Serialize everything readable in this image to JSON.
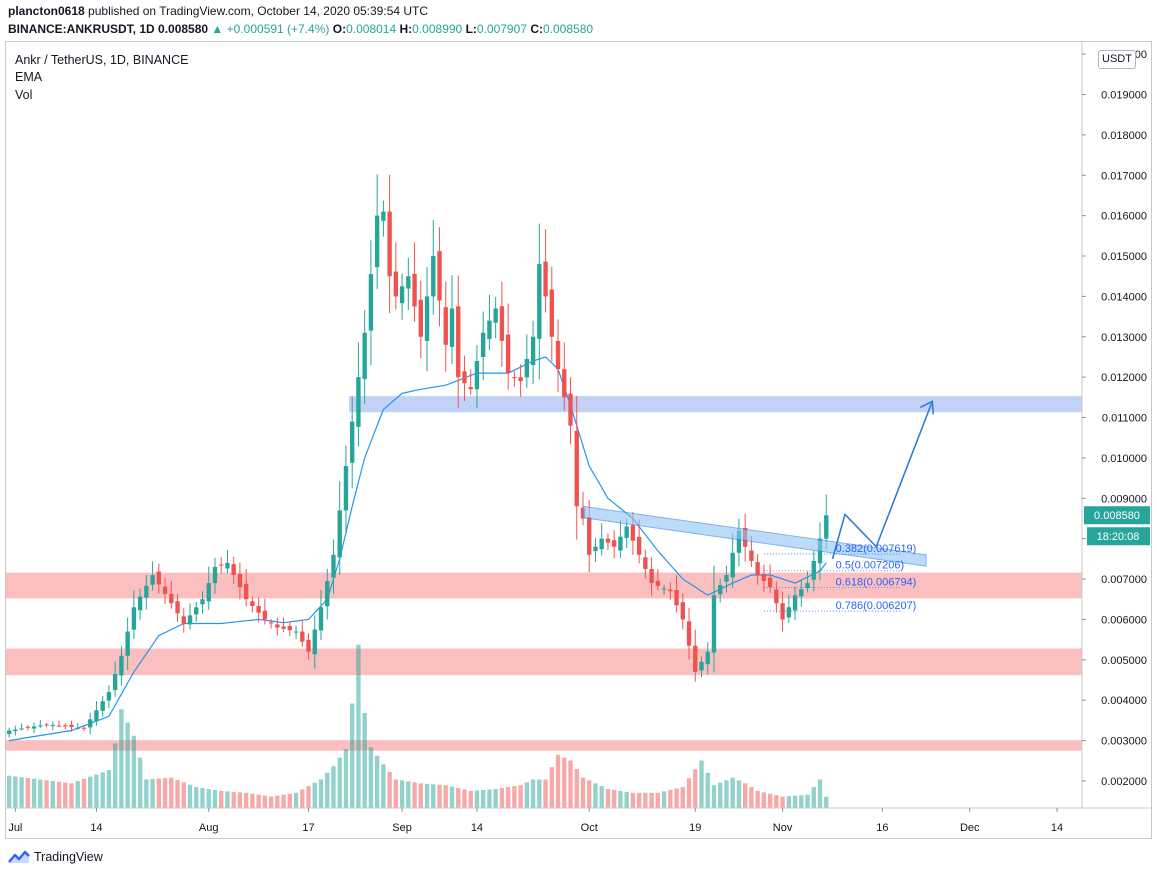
{
  "header": {
    "user": "plancton0618",
    "published": "published on TradingView.com, October 14, 2020 05:39:54 UTC",
    "symbol": "BINANCE:ANKRUSDT, 1D",
    "last": "0.008580",
    "change": "+0.000591 (+7.4%)",
    "o_label": "O:",
    "o_value": "0.008014",
    "h_label": "H:",
    "h_value": "0.008990",
    "l_label": "L:",
    "l_value": "0.007907",
    "c_label": "C:",
    "c_value": "0.008580"
  },
  "legend": {
    "title": "Ankr / TetherUS, 1D, BINANCE",
    "ema": "EMA",
    "vol": "Vol"
  },
  "currency_badge": "USDT",
  "price_badge": {
    "price": "0.008580",
    "countdown": "18:20:08"
  },
  "footer": {
    "brand": "TradingView"
  },
  "colors": {
    "up": "#26a69a",
    "down": "#ef5350",
    "ema": "#2196f3",
    "resistance_zone": "#bbcdf5",
    "support_zone": "#fbb8b8",
    "drawing": "#2f7fd6"
  },
  "chart_data": {
    "type": "candlestick",
    "ylim": [
      0.00133,
      0.0203
    ],
    "yticks": [
      "0.020000",
      "0.019000",
      "0.018000",
      "0.017000",
      "0.016000",
      "0.015000",
      "0.014000",
      "0.013000",
      "0.012000",
      "0.011000",
      "0.010000",
      "0.009000",
      "0.008000",
      "0.007000",
      "0.006000",
      "0.005000",
      "0.004000",
      "0.003000",
      "0.002000"
    ],
    "xticks": [
      "Jul",
      "14",
      "Aug",
      "17",
      "Sep",
      "14",
      "Oct",
      "19",
      "Nov",
      "16",
      "Dec",
      "14"
    ],
    "xtick_days": [
      1,
      14,
      32,
      48,
      63,
      75,
      93,
      110,
      124,
      140,
      154,
      168
    ],
    "x_range_days": [
      -0.5,
      172.0
    ],
    "start_date": "2020-06-29",
    "close_path": [
      [
        0,
        0.00325
      ],
      [
        6,
        0.0034
      ],
      [
        12,
        0.0033
      ],
      [
        16,
        0.0042
      ],
      [
        18,
        0.0051
      ],
      [
        20,
        0.0063
      ],
      [
        23,
        0.0071
      ],
      [
        26,
        0.0064
      ],
      [
        28,
        0.0059
      ],
      [
        31,
        0.0065
      ],
      [
        33,
        0.0073
      ],
      [
        35,
        0.0074
      ],
      [
        38,
        0.0065
      ],
      [
        41,
        0.006
      ],
      [
        43,
        0.0058
      ],
      [
        46,
        0.0057
      ],
      [
        48,
        0.0052
      ],
      [
        50,
        0.0063
      ],
      [
        52,
        0.0076
      ],
      [
        55,
        0.0109
      ],
      [
        57,
        0.0131
      ],
      [
        59,
        0.016
      ],
      [
        60,
        0.0161
      ],
      [
        61,
        0.0145
      ],
      [
        62,
        0.014
      ],
      [
        64,
        0.0145
      ],
      [
        66,
        0.013
      ],
      [
        68,
        0.015
      ],
      [
        70,
        0.0128
      ],
      [
        71,
        0.0137
      ],
      [
        72,
        0.012
      ],
      [
        74,
        0.0117
      ],
      [
        76,
        0.0131
      ],
      [
        78,
        0.0137
      ],
      [
        80,
        0.0121
      ],
      [
        82,
        0.0119
      ],
      [
        84,
        0.013
      ],
      [
        85,
        0.0148
      ],
      [
        86,
        0.014
      ],
      [
        87,
        0.013
      ],
      [
        88,
        0.0122
      ],
      [
        90,
        0.0108
      ],
      [
        91,
        0.0088
      ],
      [
        92,
        0.0085
      ],
      [
        93,
        0.0076
      ],
      [
        95,
        0.008
      ],
      [
        97,
        0.0078
      ],
      [
        99,
        0.0083
      ],
      [
        101,
        0.0076
      ],
      [
        103,
        0.0069
      ],
      [
        106,
        0.0067
      ],
      [
        108,
        0.006
      ],
      [
        110,
        0.0047
      ],
      [
        112,
        0.0052
      ],
      [
        113,
        0.0066
      ],
      [
        115,
        0.0071
      ],
      [
        117,
        0.0082
      ],
      [
        118,
        0.0078
      ],
      [
        120,
        0.0071
      ],
      [
        122,
        0.0068
      ],
      [
        124,
        0.006
      ],
      [
        126,
        0.0066
      ],
      [
        128,
        0.0069
      ],
      [
        130,
        0.008
      ],
      [
        131,
        0.00858
      ]
    ],
    "ema_path": [
      [
        0,
        0.003
      ],
      [
        10,
        0.00325
      ],
      [
        16,
        0.0036
      ],
      [
        20,
        0.0047
      ],
      [
        24,
        0.0056
      ],
      [
        28,
        0.0059
      ],
      [
        34,
        0.0059
      ],
      [
        40,
        0.006
      ],
      [
        44,
        0.00592
      ],
      [
        48,
        0.006
      ],
      [
        51,
        0.0065
      ],
      [
        53,
        0.0075
      ],
      [
        55,
        0.0088
      ],
      [
        57,
        0.01
      ],
      [
        60,
        0.0112
      ],
      [
        63,
        0.0116
      ],
      [
        66,
        0.0117
      ],
      [
        70,
        0.0118
      ],
      [
        75,
        0.0121
      ],
      [
        80,
        0.0121
      ],
      [
        84,
        0.0124
      ],
      [
        86,
        0.0125
      ],
      [
        88,
        0.0122
      ],
      [
        90,
        0.0113
      ],
      [
        93,
        0.0098
      ],
      [
        96,
        0.009
      ],
      [
        100,
        0.0085
      ],
      [
        104,
        0.0077
      ],
      [
        108,
        0.007
      ],
      [
        112,
        0.0066
      ],
      [
        116,
        0.0069
      ],
      [
        119,
        0.0071
      ],
      [
        122,
        0.0071
      ],
      [
        126,
        0.0069
      ],
      [
        130,
        0.0072
      ],
      [
        131,
        0.0074
      ]
    ],
    "volume_path": [
      [
        0,
        0.17
      ],
      [
        10,
        0.13
      ],
      [
        16,
        0.2
      ],
      [
        17,
        0.34
      ],
      [
        18,
        0.52
      ],
      [
        20,
        0.38
      ],
      [
        22,
        0.15
      ],
      [
        26,
        0.16
      ],
      [
        30,
        0.11
      ],
      [
        34,
        0.09
      ],
      [
        38,
        0.08
      ],
      [
        42,
        0.06
      ],
      [
        46,
        0.08
      ],
      [
        50,
        0.15
      ],
      [
        52,
        0.22
      ],
      [
        54,
        0.31
      ],
      [
        55,
        0.55
      ],
      [
        56,
        0.86
      ],
      [
        57,
        0.5
      ],
      [
        58,
        0.32
      ],
      [
        60,
        0.23
      ],
      [
        62,
        0.15
      ],
      [
        66,
        0.13
      ],
      [
        70,
        0.12
      ],
      [
        74,
        0.09
      ],
      [
        78,
        0.1
      ],
      [
        82,
        0.12
      ],
      [
        84,
        0.15
      ],
      [
        86,
        0.15
      ],
      [
        88,
        0.28
      ],
      [
        90,
        0.25
      ],
      [
        92,
        0.16
      ],
      [
        96,
        0.1
      ],
      [
        100,
        0.08
      ],
      [
        104,
        0.08
      ],
      [
        108,
        0.11
      ],
      [
        111,
        0.25
      ],
      [
        113,
        0.12
      ],
      [
        116,
        0.16
      ],
      [
        118,
        0.13
      ],
      [
        120,
        0.09
      ],
      [
        124,
        0.06
      ],
      [
        128,
        0.07
      ],
      [
        130,
        0.15
      ],
      [
        131,
        0.06
      ]
    ],
    "zones": [
      {
        "kind": "resistance",
        "from": 0.01113,
        "to": 0.01153,
        "x_from": 54.5,
        "x_to": 172.0
      },
      {
        "kind": "support",
        "from": 0.00652,
        "to": 0.00716,
        "x_from": -0.5,
        "x_to": 172.0
      },
      {
        "kind": "support",
        "from": 0.00462,
        "to": 0.00528,
        "x_from": -0.5,
        "x_to": 172.0
      },
      {
        "kind": "support",
        "from": 0.00275,
        "to": 0.00301,
        "x_from": -0.5,
        "x_to": 172.0
      }
    ],
    "fibonacci": [
      {
        "label": "0.382(0.007619)",
        "value": 0.007619
      },
      {
        "label": "0.5(0.007206)",
        "value": 0.007206
      },
      {
        "label": "0.618(0.006794)",
        "value": 0.006794
      },
      {
        "label": "0.786(0.006207)",
        "value": 0.006207
      }
    ],
    "trend_channel": [
      [
        92,
        0.0088
      ],
      [
        147,
        0.0076
      ]
    ],
    "projection_path": [
      [
        132,
        0.0075
      ],
      [
        134,
        0.0086
      ],
      [
        139,
        0.0078
      ],
      [
        148,
        0.0114
      ]
    ]
  }
}
